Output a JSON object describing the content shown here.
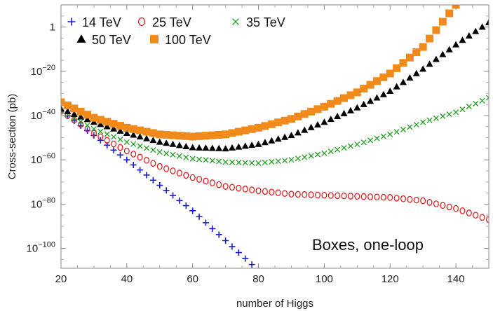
{
  "chart_data": {
    "type": "scatter",
    "title": "",
    "xlabel": "number of Higgs",
    "ylabel": "Cross-section (pb)",
    "xlim": [
      20,
      150
    ],
    "ylim_log10": [
      -109,
      10
    ],
    "yscale": "log",
    "grid": false,
    "legend_position": "top-left",
    "annotation": "Boxes, one-loop",
    "x_ticks": [
      {
        "value": 20,
        "label": "20"
      },
      {
        "value": 40,
        "label": "40"
      },
      {
        "value": 60,
        "label": "60"
      },
      {
        "value": 80,
        "label": "80"
      },
      {
        "value": 100,
        "label": "100"
      },
      {
        "value": 120,
        "label": "120"
      },
      {
        "value": 140,
        "label": "140"
      }
    ],
    "y_ticks": [
      {
        "log10": 0,
        "base": "1",
        "exp": ""
      },
      {
        "log10": -20,
        "base": "10",
        "exp": "−20"
      },
      {
        "log10": -40,
        "base": "10",
        "exp": "−40"
      },
      {
        "log10": -60,
        "base": "10",
        "exp": "−60"
      },
      {
        "log10": -80,
        "base": "10",
        "exp": "−80"
      },
      {
        "log10": -100,
        "base": "10",
        "exp": "−100"
      }
    ],
    "series": [
      {
        "name": "14 TeV",
        "marker": "plus",
        "color": "#1a1ad6",
        "x_range": [
          20,
          80
        ],
        "x_step": 2,
        "log10_points": [
          [
            20,
            -38
          ],
          [
            40,
            -60
          ],
          [
            60,
            -83
          ],
          [
            80,
            -110
          ]
        ]
      },
      {
        "name": "25 TeV",
        "marker": "circle",
        "color": "#e02020",
        "x_range": [
          20,
          150
        ],
        "x_step": 2,
        "log10_points": [
          [
            20,
            -38
          ],
          [
            30,
            -48
          ],
          [
            40,
            -56
          ],
          [
            50,
            -63
          ],
          [
            60,
            -68
          ],
          [
            70,
            -72
          ],
          [
            80,
            -74
          ],
          [
            90,
            -75.5
          ],
          [
            100,
            -76
          ],
          [
            110,
            -76.5
          ],
          [
            120,
            -77
          ],
          [
            130,
            -78.5
          ],
          [
            140,
            -82
          ],
          [
            150,
            -87
          ]
        ]
      },
      {
        "name": "35 TeV",
        "marker": "x",
        "color": "#20a020",
        "x_range": [
          20,
          150
        ],
        "x_step": 2,
        "log10_points": [
          [
            20,
            -38
          ],
          [
            30,
            -46
          ],
          [
            40,
            -52
          ],
          [
            50,
            -56.5
          ],
          [
            60,
            -59.5
          ],
          [
            70,
            -61
          ],
          [
            80,
            -61.5
          ],
          [
            90,
            -60
          ],
          [
            100,
            -57
          ],
          [
            110,
            -53
          ],
          [
            120,
            -48.5
          ],
          [
            130,
            -43
          ],
          [
            140,
            -38.5
          ],
          [
            150,
            -32
          ]
        ]
      },
      {
        "name": "50 TeV",
        "marker": "triangle",
        "color": "#000000",
        "x_range": [
          20,
          150
        ],
        "x_step": 2,
        "log10_points": [
          [
            20,
            -37
          ],
          [
            30,
            -43
          ],
          [
            40,
            -48
          ],
          [
            50,
            -52
          ],
          [
            60,
            -54.5
          ],
          [
            70,
            -55
          ],
          [
            80,
            -53
          ],
          [
            90,
            -49
          ],
          [
            100,
            -43
          ],
          [
            110,
            -36.5
          ],
          [
            120,
            -29
          ],
          [
            130,
            -19
          ],
          [
            140,
            -8
          ],
          [
            150,
            2
          ]
        ]
      },
      {
        "name": "100 TeV",
        "marker": "square",
        "color": "#f08a1a",
        "x_range": [
          20,
          140
        ],
        "x_step": 2,
        "log10_points": [
          [
            20,
            -34
          ],
          [
            30,
            -41
          ],
          [
            40,
            -45.5
          ],
          [
            50,
            -48.5
          ],
          [
            60,
            -49.5
          ],
          [
            70,
            -48.5
          ],
          [
            80,
            -45.5
          ],
          [
            90,
            -41.5
          ],
          [
            100,
            -36
          ],
          [
            110,
            -29.5
          ],
          [
            120,
            -21
          ],
          [
            130,
            -9
          ],
          [
            140,
            10
          ]
        ]
      }
    ]
  }
}
